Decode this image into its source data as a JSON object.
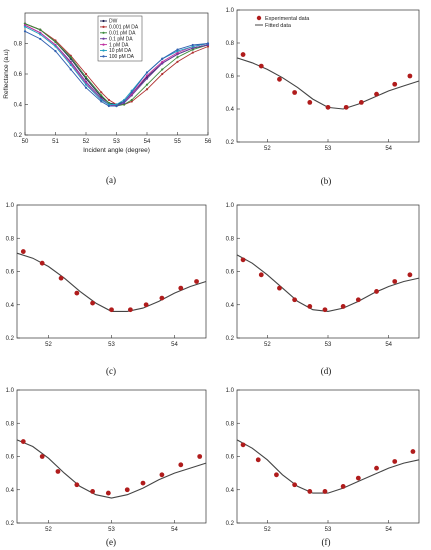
{
  "chart_data": [
    {
      "type": "line",
      "caption": "(a)",
      "xlabel": "Incident angle (degree)",
      "ylabel": "Reflectance (a.u)",
      "xlim": [
        50,
        56
      ],
      "ylim": [
        0.2,
        1.0
      ],
      "xticks": [
        "50",
        "51",
        "52",
        "53",
        "54",
        "55",
        "56"
      ],
      "yticks": [
        "0.2",
        "0.4",
        "0.6",
        "0.8"
      ],
      "x": [
        50,
        50.5,
        51,
        51.5,
        52,
        52.5,
        52.75,
        53,
        53.25,
        53.5,
        54,
        54.5,
        55,
        55.5,
        56
      ],
      "legend_position": "top-center",
      "series": [
        {
          "name": "DW",
          "color": "#1f1f4f",
          "values": [
            0.93,
            0.89,
            0.81,
            0.7,
            0.57,
            0.45,
            0.41,
            0.4,
            0.42,
            0.47,
            0.58,
            0.67,
            0.73,
            0.77,
            0.79
          ]
        },
        {
          "name": "0.001 pM DA",
          "color": "#b03030",
          "values": [
            0.93,
            0.89,
            0.82,
            0.72,
            0.6,
            0.48,
            0.43,
            0.4,
            0.4,
            0.42,
            0.5,
            0.6,
            0.68,
            0.74,
            0.78
          ]
        },
        {
          "name": "0.01 pM DA",
          "color": "#3a8a3a",
          "values": [
            0.93,
            0.89,
            0.81,
            0.71,
            0.58,
            0.46,
            0.41,
            0.39,
            0.4,
            0.43,
            0.53,
            0.63,
            0.71,
            0.76,
            0.79
          ]
        },
        {
          "name": "0.1 pM DA",
          "color": "#6a3a9a",
          "values": [
            0.92,
            0.87,
            0.79,
            0.68,
            0.55,
            0.44,
            0.4,
            0.39,
            0.41,
            0.46,
            0.57,
            0.67,
            0.73,
            0.77,
            0.79
          ]
        },
        {
          "name": "1 pM DA",
          "color": "#c030a0",
          "values": [
            0.92,
            0.87,
            0.79,
            0.67,
            0.54,
            0.43,
            0.4,
            0.39,
            0.42,
            0.47,
            0.59,
            0.68,
            0.74,
            0.78,
            0.8
          ]
        },
        {
          "name": "10 pM DA",
          "color": "#20a0c0",
          "values": [
            0.91,
            0.86,
            0.78,
            0.66,
            0.53,
            0.43,
            0.4,
            0.4,
            0.43,
            0.49,
            0.61,
            0.7,
            0.75,
            0.78,
            0.8
          ]
        },
        {
          "name": "100 pM DA",
          "color": "#3060b0",
          "values": [
            0.88,
            0.83,
            0.75,
            0.63,
            0.51,
            0.42,
            0.39,
            0.39,
            0.42,
            0.48,
            0.61,
            0.7,
            0.76,
            0.79,
            0.8
          ]
        }
      ]
    },
    {
      "type": "scatter+line",
      "caption": "(b)",
      "xlim": [
        51.5,
        54.5
      ],
      "ylim": [
        0.2,
        1.0
      ],
      "xticks": [
        "52",
        "53",
        "54"
      ],
      "yticks": [
        "0.2",
        "0.4",
        "0.6",
        "0.8",
        "1.0"
      ],
      "legend": [
        "Experimental data",
        "Fitted data"
      ],
      "legend_position": "top-left",
      "experimental": {
        "x": [
          51.6,
          51.9,
          52.2,
          52.45,
          52.7,
          53.0,
          53.3,
          53.55,
          53.8,
          54.1,
          54.35
        ],
        "y": [
          0.73,
          0.66,
          0.58,
          0.5,
          0.44,
          0.41,
          0.41,
          0.44,
          0.49,
          0.55,
          0.6
        ]
      },
      "fitted": {
        "x": [
          51.5,
          51.75,
          52.0,
          52.25,
          52.5,
          52.75,
          53.0,
          53.25,
          53.5,
          53.75,
          54.0,
          54.25,
          54.5
        ],
        "y": [
          0.71,
          0.68,
          0.64,
          0.59,
          0.53,
          0.46,
          0.41,
          0.4,
          0.43,
          0.47,
          0.51,
          0.54,
          0.57
        ]
      }
    },
    {
      "type": "scatter+line",
      "caption": "(c)",
      "xlim": [
        51.5,
        54.5
      ],
      "ylim": [
        0.2,
        1.0
      ],
      "xticks": [
        "52",
        "53",
        "54"
      ],
      "yticks": [
        "0.2",
        "0.4",
        "0.6",
        "0.8",
        "1.0"
      ],
      "experimental": {
        "x": [
          51.6,
          51.9,
          52.2,
          52.45,
          52.7,
          53.0,
          53.3,
          53.55,
          53.8,
          54.1,
          54.35
        ],
        "y": [
          0.72,
          0.65,
          0.56,
          0.47,
          0.41,
          0.37,
          0.37,
          0.4,
          0.44,
          0.5,
          0.54
        ]
      },
      "fitted": {
        "x": [
          51.5,
          51.75,
          52.0,
          52.25,
          52.5,
          52.75,
          53.0,
          53.25,
          53.5,
          53.75,
          54.0,
          54.25,
          54.5
        ],
        "y": [
          0.71,
          0.68,
          0.63,
          0.56,
          0.48,
          0.41,
          0.36,
          0.36,
          0.38,
          0.42,
          0.47,
          0.51,
          0.54
        ]
      }
    },
    {
      "type": "scatter+line",
      "caption": "(d)",
      "xlim": [
        51.5,
        54.5
      ],
      "ylim": [
        0.2,
        1.0
      ],
      "xticks": [
        "52",
        "53",
        "54"
      ],
      "yticks": [
        "0.2",
        "0.4",
        "0.6",
        "0.8",
        "1.0"
      ],
      "experimental": {
        "x": [
          51.6,
          51.9,
          52.2,
          52.45,
          52.7,
          52.95,
          53.25,
          53.5,
          53.8,
          54.1,
          54.35
        ],
        "y": [
          0.67,
          0.58,
          0.5,
          0.43,
          0.39,
          0.37,
          0.39,
          0.43,
          0.48,
          0.54,
          0.58
        ]
      },
      "fitted": {
        "x": [
          51.5,
          51.75,
          52.0,
          52.25,
          52.5,
          52.75,
          53.0,
          53.25,
          53.5,
          53.75,
          54.0,
          54.25,
          54.5
        ],
        "y": [
          0.7,
          0.65,
          0.58,
          0.5,
          0.42,
          0.37,
          0.36,
          0.38,
          0.42,
          0.47,
          0.51,
          0.54,
          0.56
        ]
      }
    },
    {
      "type": "scatter+line",
      "caption": "(e)",
      "xlim": [
        51.5,
        54.5
      ],
      "ylim": [
        0.2,
        1.0
      ],
      "xticks": [
        "52",
        "53",
        "54"
      ],
      "yticks": [
        "0.2",
        "0.4",
        "0.6",
        "0.8",
        "1.0"
      ],
      "experimental": {
        "x": [
          51.6,
          51.9,
          52.15,
          52.45,
          52.7,
          52.95,
          53.25,
          53.5,
          53.8,
          54.1,
          54.4
        ],
        "y": [
          0.69,
          0.6,
          0.51,
          0.43,
          0.39,
          0.38,
          0.4,
          0.44,
          0.49,
          0.55,
          0.6
        ]
      },
      "fitted": {
        "x": [
          51.5,
          51.75,
          52.0,
          52.25,
          52.5,
          52.75,
          53.0,
          53.25,
          53.5,
          53.75,
          54.0,
          54.25,
          54.5
        ],
        "y": [
          0.7,
          0.66,
          0.59,
          0.5,
          0.42,
          0.37,
          0.35,
          0.37,
          0.41,
          0.46,
          0.5,
          0.53,
          0.56
        ]
      }
    },
    {
      "type": "scatter+line",
      "caption": "(f)",
      "xlim": [
        51.5,
        54.5
      ],
      "ylim": [
        0.2,
        1.0
      ],
      "xticks": [
        "52",
        "53",
        "54"
      ],
      "yticks": [
        "0.2",
        "0.4",
        "0.6",
        "0.8",
        "1.0"
      ],
      "experimental": {
        "x": [
          51.6,
          51.85,
          52.15,
          52.45,
          52.7,
          52.95,
          53.25,
          53.5,
          53.8,
          54.1,
          54.4
        ],
        "y": [
          0.67,
          0.58,
          0.49,
          0.43,
          0.39,
          0.39,
          0.42,
          0.47,
          0.53,
          0.57,
          0.63
        ]
      },
      "fitted": {
        "x": [
          51.5,
          51.75,
          52.0,
          52.25,
          52.5,
          52.75,
          53.0,
          53.25,
          53.5,
          53.75,
          54.0,
          54.25,
          54.5
        ],
        "y": [
          0.7,
          0.65,
          0.58,
          0.49,
          0.42,
          0.38,
          0.38,
          0.41,
          0.45,
          0.49,
          0.53,
          0.56,
          0.58
        ]
      }
    }
  ]
}
